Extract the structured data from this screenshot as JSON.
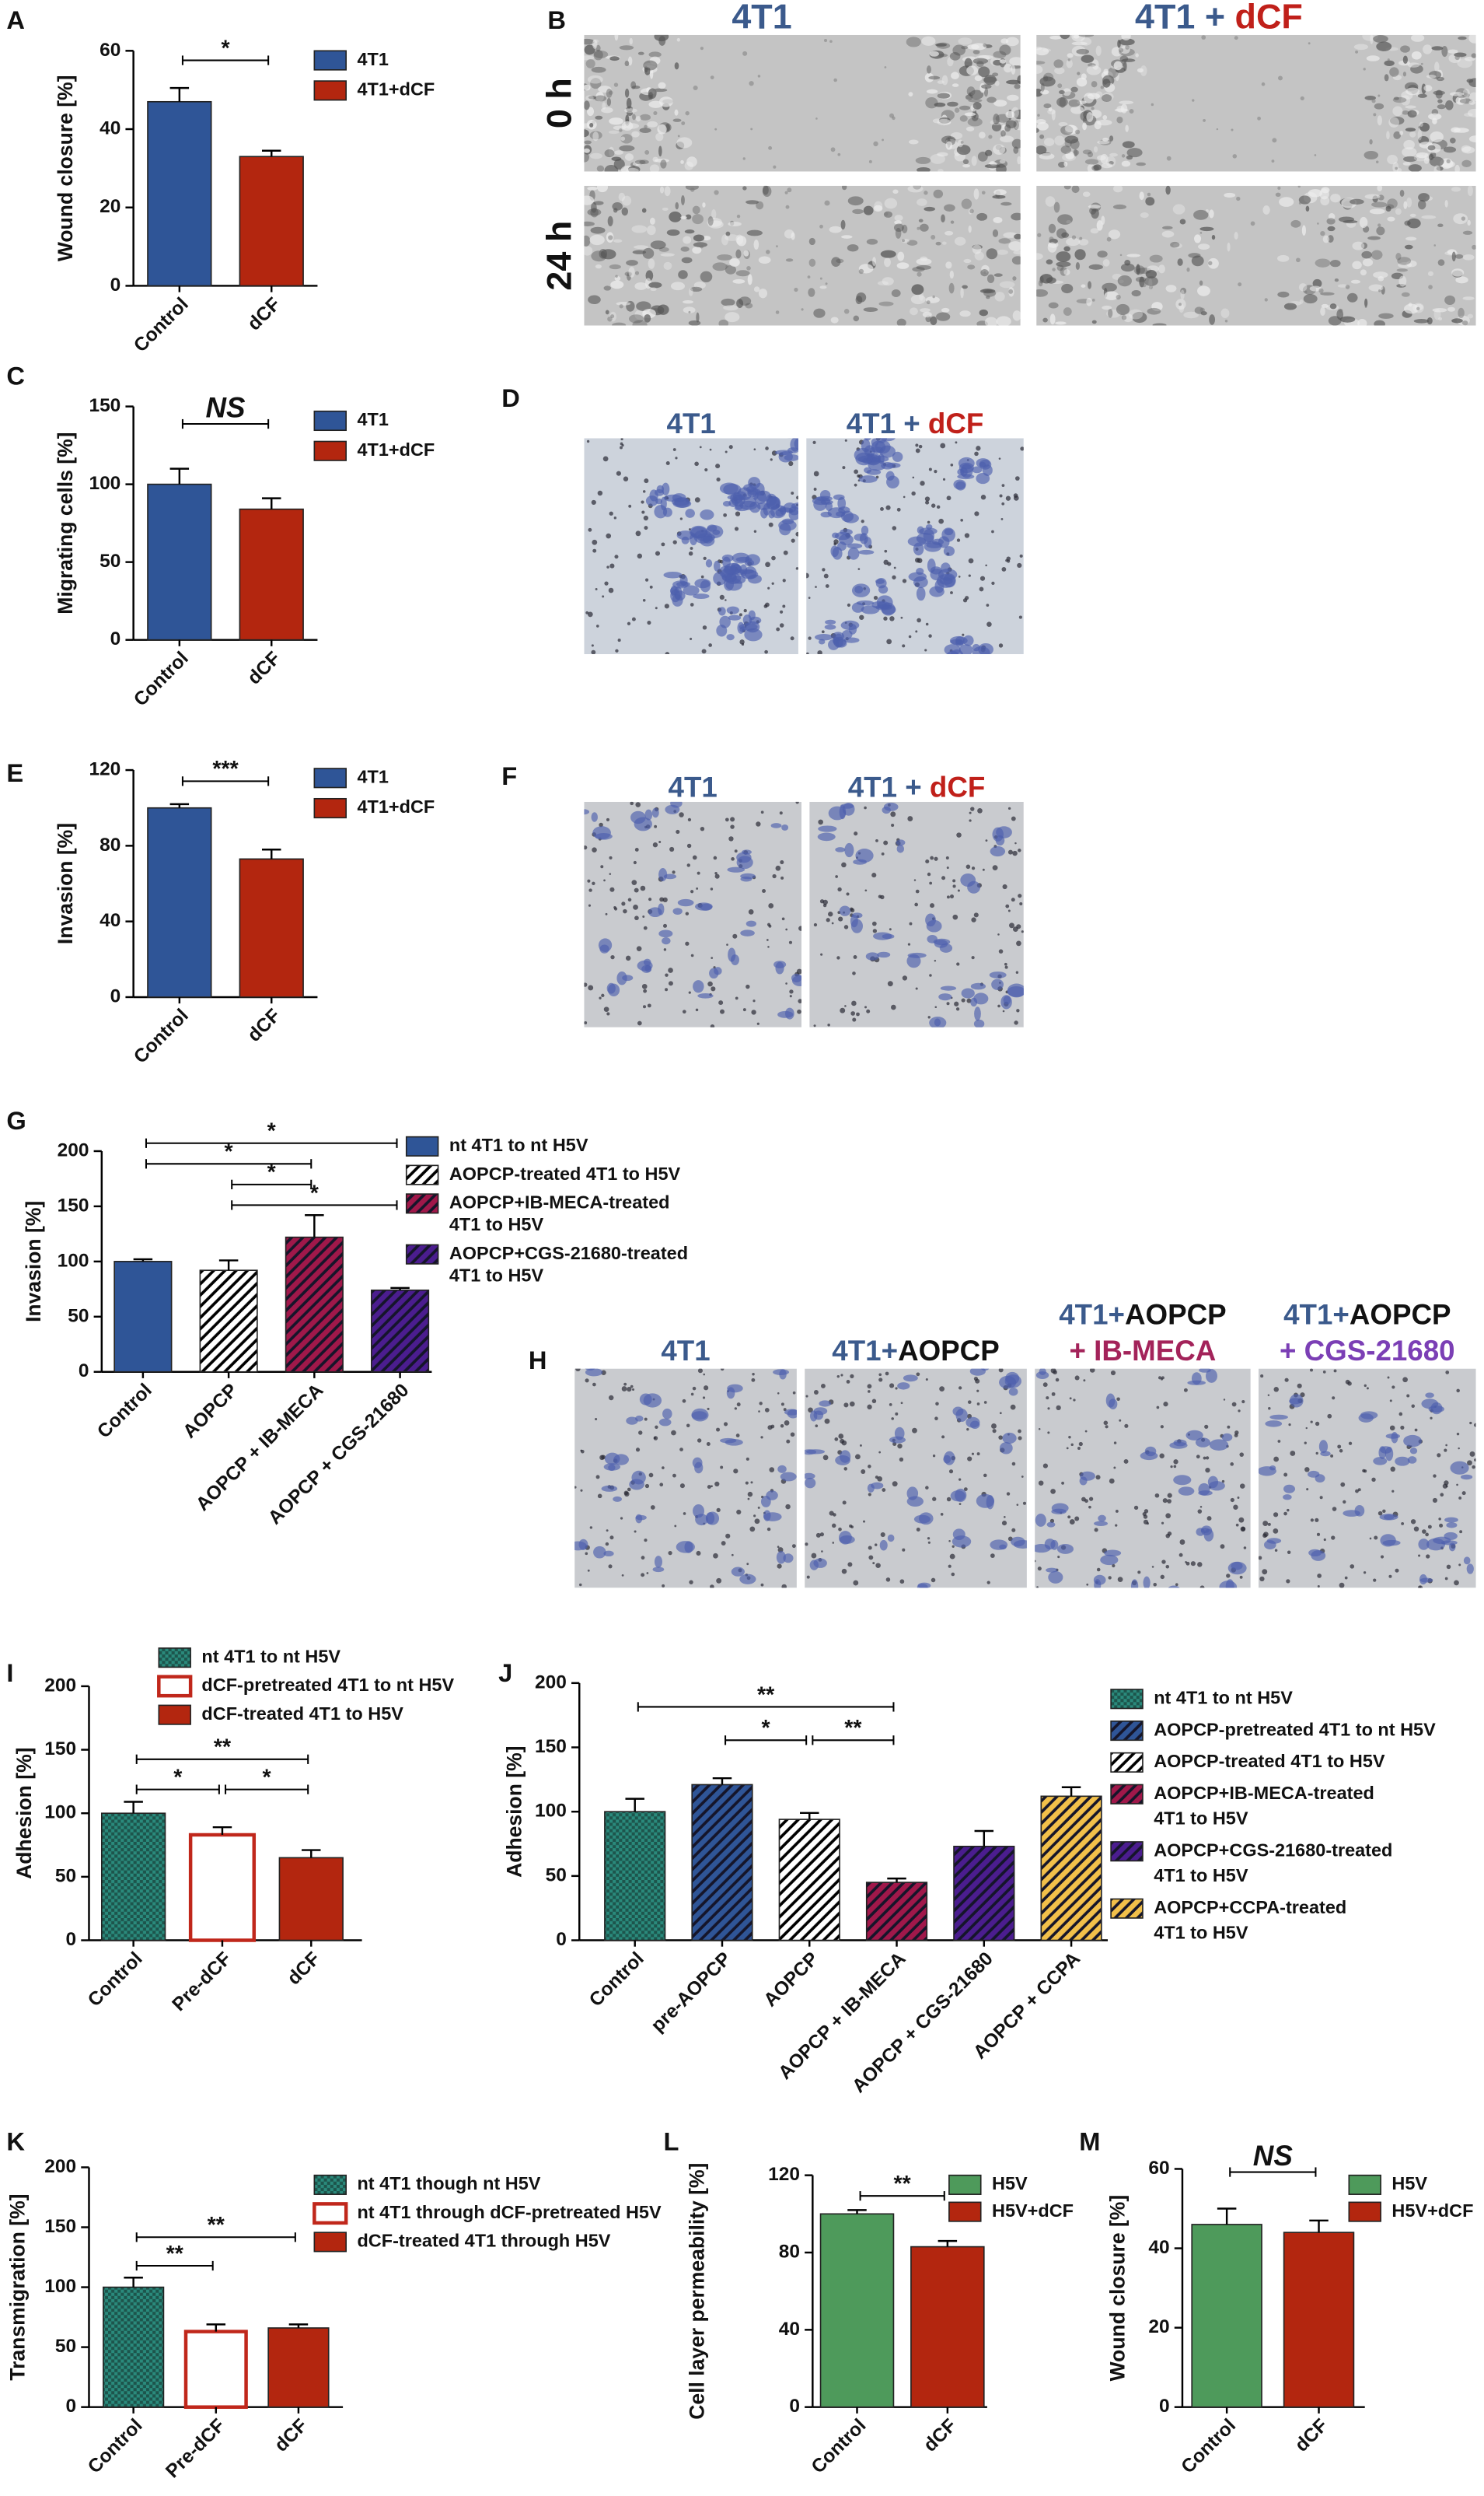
{
  "chart_data": [
    {
      "type": "bar",
      "letter": "A",
      "ylabel": "Wound closure [%]",
      "categories": [
        "Control",
        "dCF"
      ],
      "values": [
        47,
        33
      ],
      "errors": [
        3.5,
        1.5
      ],
      "ylim": [
        0,
        60
      ],
      "yticks": [
        0,
        20,
        40,
        60
      ],
      "legend": [
        [
          "4T1"
        ],
        [
          "4T1+dCF"
        ]
      ],
      "styles": [
        {
          "color": "#2f5597",
          "pattern": "solid"
        },
        {
          "color": "#b3260f",
          "pattern": "solid"
        }
      ],
      "significance": [
        {
          "from": 0,
          "to": 1,
          "label": "*"
        }
      ]
    },
    {
      "type": "bar",
      "letter": "C",
      "ylabel": "Migrating cells [%]",
      "categories": [
        "Control",
        "dCF"
      ],
      "values": [
        100,
        84
      ],
      "errors": [
        10,
        7
      ],
      "ylim": [
        0,
        150
      ],
      "yticks": [
        0,
        50,
        100,
        150
      ],
      "legend": [
        [
          "4T1"
        ],
        [
          "4T1+dCF"
        ]
      ],
      "styles": [
        {
          "color": "#2f5597",
          "pattern": "solid"
        },
        {
          "color": "#b3260f",
          "pattern": "solid"
        }
      ],
      "significance": [
        {
          "from": 0,
          "to": 1,
          "label": "NS"
        }
      ]
    },
    {
      "type": "bar",
      "letter": "E",
      "ylabel": "Invasion [%]",
      "categories": [
        "Control",
        "dCF"
      ],
      "values": [
        100,
        73
      ],
      "errors": [
        2,
        5
      ],
      "ylim": [
        0,
        120
      ],
      "yticks": [
        0,
        40,
        80,
        120
      ],
      "legend": [
        [
          "4T1"
        ],
        [
          "4T1+dCF"
        ]
      ],
      "styles": [
        {
          "color": "#2f5597",
          "pattern": "solid"
        },
        {
          "color": "#b3260f",
          "pattern": "solid"
        }
      ],
      "significance": [
        {
          "from": 0,
          "to": 1,
          "label": "***"
        }
      ]
    },
    {
      "type": "bar",
      "letter": "G",
      "ylabel": "Invasion [%]",
      "categories": [
        "Control",
        "AOPCP",
        "AOPCP + IB-MECA",
        "AOPCP + CGS-21680"
      ],
      "values": [
        100,
        92,
        122,
        74
      ],
      "errors": [
        2,
        9,
        20,
        2
      ],
      "ylim": [
        0,
        200
      ],
      "yticks": [
        0,
        50,
        100,
        150,
        200
      ],
      "legend": [
        [
          "nt 4T1 to nt H5V"
        ],
        [
          "AOPCP-treated 4T1 to H5V"
        ],
        [
          "AOPCP+IB-MECA-treated",
          "4T1 to H5V"
        ],
        [
          "AOPCP+CGS-21680-treated",
          "4T1 to H5V"
        ]
      ],
      "styles": [
        {
          "color": "#2f5597",
          "pattern": "solid"
        },
        {
          "color": "#ffffff",
          "pattern": "hatch"
        },
        {
          "color": "#a0184a",
          "pattern": "hatch"
        },
        {
          "color": "#4b1d8f",
          "pattern": "hatch"
        }
      ],
      "significance": [
        {
          "from": 0,
          "to": 3,
          "label": "*"
        },
        {
          "from": 0,
          "to": 2,
          "label": "*"
        },
        {
          "from": 1,
          "to": 2,
          "label": "*"
        },
        {
          "from": 1,
          "to": 3,
          "label": "*"
        }
      ]
    },
    {
      "type": "bar",
      "letter": "I",
      "ylabel": "Adhesion [%]",
      "categories": [
        "Control",
        "Pre-dCF",
        "dCF"
      ],
      "values": [
        100,
        83,
        65
      ],
      "errors": [
        9,
        6,
        6
      ],
      "ylim": [
        0,
        200
      ],
      "yticks": [
        0,
        50,
        100,
        150,
        200
      ],
      "legend": [
        [
          "nt 4T1 to nt H5V"
        ],
        [
          "dCF-pretreated 4T1 to nt H5V"
        ],
        [
          "dCF-treated 4T1 to H5V"
        ]
      ],
      "styles": [
        {
          "color": "#2a8a7c",
          "pattern": "checker"
        },
        {
          "color": "#c0271b",
          "pattern": "outline"
        },
        {
          "color": "#b3260f",
          "pattern": "solid"
        }
      ],
      "significance": [
        {
          "from": 0,
          "to": 2,
          "label": "**"
        },
        {
          "from": 0,
          "to": 1,
          "label": "*"
        },
        {
          "from": 1,
          "to": 2,
          "label": "*"
        }
      ]
    },
    {
      "type": "bar",
      "letter": "J",
      "ylabel": "Adhesion [%]",
      "categories": [
        "Control",
        "pre-AOPCP",
        "AOPCP",
        "AOPCP + IB-MECA",
        "AOPCP + CGS-21680",
        "AOPCP + CCPA"
      ],
      "values": [
        100,
        121,
        94,
        45,
        73,
        112
      ],
      "errors": [
        10,
        5,
        5,
        3,
        12,
        7
      ],
      "ylim": [
        0,
        200
      ],
      "yticks": [
        0,
        50,
        100,
        150,
        200
      ],
      "legend": [
        [
          "nt 4T1 to nt H5V"
        ],
        [
          "AOPCP-pretreated 4T1 to nt H5V"
        ],
        [
          "AOPCP-treated 4T1 to H5V"
        ],
        [
          "AOPCP+IB-MECA-treated",
          "4T1 to H5V"
        ],
        [
          "AOPCP+CGS-21680-treated",
          "4T1 to H5V"
        ],
        [
          "AOPCP+CCPA-treated",
          "4T1 to H5V"
        ]
      ],
      "styles": [
        {
          "color": "#2a8a7c",
          "pattern": "checker"
        },
        {
          "color": "#2f5597",
          "pattern": "hatch"
        },
        {
          "color": "#ffffff",
          "pattern": "hatch"
        },
        {
          "color": "#a0184a",
          "pattern": "hatch"
        },
        {
          "color": "#4b1d8f",
          "pattern": "hatch"
        },
        {
          "color": "#f2c04a",
          "pattern": "hatch"
        }
      ],
      "significance": [
        {
          "from": 0,
          "to": 3,
          "label": "**"
        },
        {
          "from": 1,
          "to": 2,
          "label": "*"
        },
        {
          "from": 2,
          "to": 3,
          "label": "**"
        }
      ]
    },
    {
      "type": "bar",
      "letter": "K",
      "ylabel": "Transmigration [%]",
      "categories": [
        "Control",
        "Pre-dCF",
        "dCF"
      ],
      "values": [
        100,
        63,
        66
      ],
      "errors": [
        8,
        6,
        3
      ],
      "ylim": [
        0,
        200
      ],
      "yticks": [
        0,
        50,
        100,
        150,
        200
      ],
      "legend": [
        [
          "nt 4T1 though nt H5V"
        ],
        [
          "nt 4T1 through dCF-pretreated H5V"
        ],
        [
          "dCF-treated 4T1 through H5V"
        ]
      ],
      "styles": [
        {
          "color": "#2a8a7c",
          "pattern": "checker"
        },
        {
          "color": "#c0271b",
          "pattern": "outline"
        },
        {
          "color": "#b3260f",
          "pattern": "solid"
        }
      ],
      "significance": [
        {
          "from": 0,
          "to": 2,
          "label": "**"
        },
        {
          "from": 0,
          "to": 1,
          "label": "**"
        }
      ]
    },
    {
      "type": "bar",
      "letter": "L",
      "ylabel": "Cell layer permeability [%]",
      "categories": [
        "Control",
        "dCF"
      ],
      "values": [
        100,
        83
      ],
      "errors": [
        2,
        3
      ],
      "ylim": [
        0,
        120
      ],
      "yticks": [
        0,
        40,
        80,
        120
      ],
      "legend": [
        [
          "H5V"
        ],
        [
          "H5V+dCF"
        ]
      ],
      "styles": [
        {
          "color": "#4e9a5b",
          "pattern": "solid"
        },
        {
          "color": "#b3260f",
          "pattern": "solid"
        }
      ],
      "significance": [
        {
          "from": 0,
          "to": 1,
          "label": "**"
        }
      ]
    },
    {
      "type": "bar",
      "letter": "M",
      "ylabel": "Wound closure [%]",
      "categories": [
        "Control",
        "dCF"
      ],
      "values": [
        46,
        44
      ],
      "errors": [
        4,
        3
      ],
      "ylim": [
        0,
        60
      ],
      "yticks": [
        0,
        20,
        40,
        60
      ],
      "legend": [
        [
          "H5V"
        ],
        [
          "H5V+dCF"
        ]
      ],
      "styles": [
        {
          "color": "#4e9a5b",
          "pattern": "solid"
        },
        {
          "color": "#b3260f",
          "pattern": "solid"
        }
      ],
      "significance": [
        {
          "from": 0,
          "to": 1,
          "label": "NS"
        }
      ]
    }
  ],
  "image_panels": [
    {
      "letter": "B",
      "headers": [
        [
          [
            {
              "text": "4T1",
              "color": "#3b5a8c"
            }
          ]
        ],
        [
          [
            {
              "text": "4T1 + ",
              "color": "#3b5a8c"
            },
            {
              "text": "dCF",
              "color": "#c0201a"
            }
          ]
        ]
      ],
      "row_labels": [
        "0 h",
        "24 h"
      ]
    },
    {
      "letter": "D",
      "headers": [
        [
          [
            {
              "text": "4T1",
              "color": "#3b5a8c"
            }
          ]
        ],
        [
          [
            {
              "text": "4T1 + ",
              "color": "#3b5a8c"
            },
            {
              "text": "dCF",
              "color": "#c0201a"
            }
          ]
        ]
      ]
    },
    {
      "letter": "F",
      "headers": [
        [
          [
            {
              "text": "4T1",
              "color": "#3b5a8c"
            }
          ]
        ],
        [
          [
            {
              "text": "4T1 + ",
              "color": "#3b5a8c"
            },
            {
              "text": "dCF",
              "color": "#c0201a"
            }
          ]
        ]
      ]
    },
    {
      "letter": "H",
      "headers": [
        [
          [
            {
              "text": "4T1",
              "color": "#3b5a8c"
            }
          ]
        ],
        [
          [
            {
              "text": "4T1+",
              "color": "#3b5a8c"
            },
            {
              "text": "AOPCP",
              "color": "#111111"
            }
          ]
        ],
        [
          [
            {
              "text": "4T1+",
              "color": "#3b5a8c"
            },
            {
              "text": "AOPCP",
              "color": "#111111"
            }
          ],
          [
            {
              "text": "+ IB-MECA",
              "color": "#a3235a"
            }
          ]
        ],
        [
          [
            {
              "text": "4T1+",
              "color": "#3b5a8c"
            },
            {
              "text": "AOPCP",
              "color": "#111111"
            }
          ],
          [
            {
              "text": "+ CGS-21680",
              "color": "#7b3fb5"
            }
          ]
        ]
      ]
    }
  ]
}
